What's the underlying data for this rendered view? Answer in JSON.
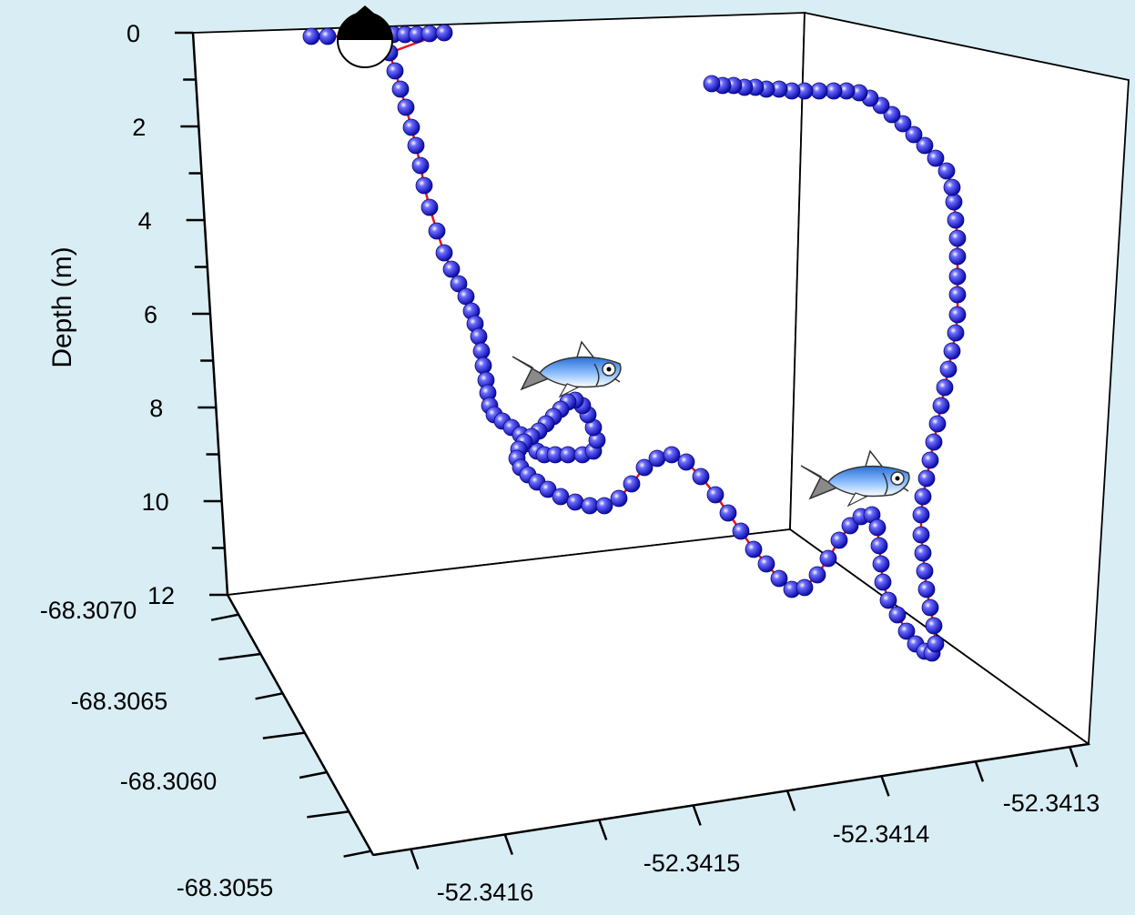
{
  "chart_data": {
    "type": "scatter3d",
    "title": "",
    "zlabel": "Depth (m)",
    "z_ticks": [
      "0",
      "2",
      "4",
      "6",
      "8",
      "10",
      "12"
    ],
    "y_ticks": [
      "-68.3070",
      "-68.3065",
      "-68.3060",
      "-68.3055"
    ],
    "x_ticks": [
      "-52.3416",
      "-52.3415",
      "-52.3414",
      "-52.3413"
    ],
    "zlim": [
      0,
      12
    ],
    "xlim": [
      -52.3416,
      -52.3413
    ],
    "ylim": [
      -68.307,
      -68.3055
    ],
    "track_color": "#e8141c",
    "point_color": "#1a1ad8",
    "grid": false,
    "annotations": [
      {
        "type": "buoy-icon",
        "depth": 0
      },
      {
        "type": "fish-icon",
        "depth": 7.5
      },
      {
        "type": "fish-icon",
        "depth": 10
      }
    ]
  }
}
